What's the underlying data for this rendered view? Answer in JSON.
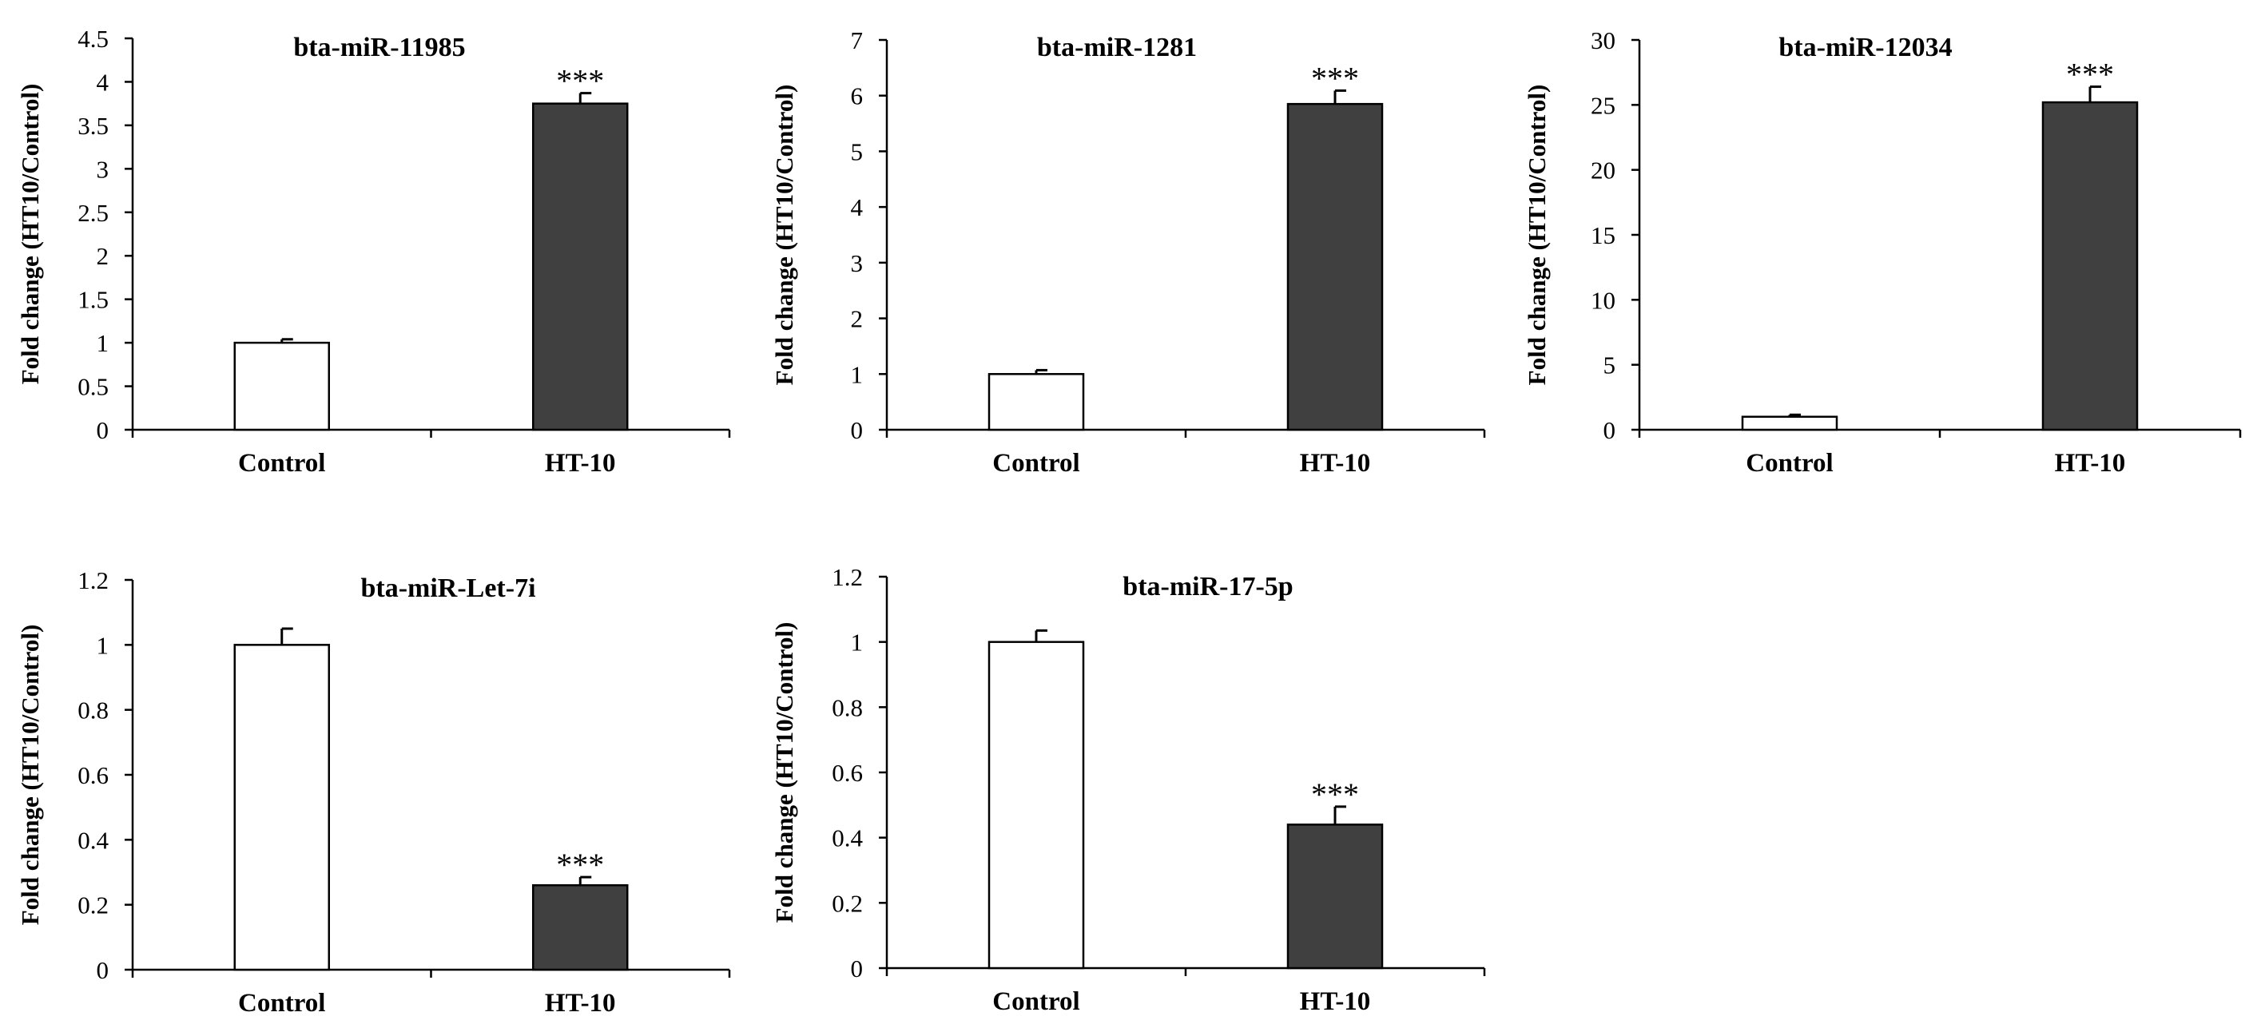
{
  "colors": {
    "control_fill": "#ffffff",
    "treated_fill": "#404040",
    "stroke": "#000000"
  },
  "chart_data": [
    {
      "type": "bar",
      "title": "bta-miR-11985",
      "xlabel": "",
      "ylabel": "Fold change (HT10/Control)",
      "ylim": [
        0,
        4.5
      ],
      "yticks": [
        "0",
        "0.5",
        "1",
        "1.5",
        "2",
        "2.5",
        "3",
        "3.5",
        "4",
        "4.5"
      ],
      "categories": [
        "Control",
        "HT-10"
      ],
      "values": [
        1.0,
        3.75
      ],
      "errors": [
        0.04,
        0.12
      ],
      "annotations": [
        "",
        "***"
      ]
    },
    {
      "type": "bar",
      "title": "bta-miR-1281",
      "xlabel": "",
      "ylabel": "Fold change (HT10/Control)",
      "ylim": [
        0,
        7
      ],
      "yticks": [
        "0",
        "1",
        "2",
        "3",
        "4",
        "5",
        "6",
        "7"
      ],
      "categories": [
        "Control",
        "HT-10"
      ],
      "values": [
        1.0,
        5.85
      ],
      "errors": [
        0.07,
        0.24
      ],
      "annotations": [
        "",
        "***"
      ]
    },
    {
      "type": "bar",
      "title": "bta-miR-12034",
      "xlabel": "",
      "ylabel": "Fold change (HT10/Control)",
      "ylim": [
        0,
        30
      ],
      "yticks": [
        "0",
        "5",
        "10",
        "15",
        "20",
        "25",
        "30"
      ],
      "categories": [
        "Control",
        "HT-10"
      ],
      "values": [
        1.0,
        25.2
      ],
      "errors": [
        0.15,
        1.2
      ],
      "annotations": [
        "",
        "***"
      ]
    },
    {
      "type": "bar",
      "title": "bta-miR-Let-7i",
      "xlabel": "",
      "ylabel": "Fold change (HT10/Control)",
      "ylim": [
        0,
        1.2
      ],
      "yticks": [
        "0",
        "0.2",
        "0.4",
        "0.6",
        "0.8",
        "1",
        "1.2"
      ],
      "categories": [
        "Control",
        "HT-10"
      ],
      "values": [
        1.0,
        0.26
      ],
      "errors": [
        0.05,
        0.025
      ],
      "annotations": [
        "",
        "***"
      ]
    },
    {
      "type": "bar",
      "title": "bta-miR-17-5p",
      "xlabel": "",
      "ylabel": "Fold change (HT10/Control)",
      "ylim": [
        0,
        1.2
      ],
      "yticks": [
        "0",
        "0.2",
        "0.4",
        "0.6",
        "0.8",
        "1",
        "1.2"
      ],
      "categories": [
        "Control",
        "HT-10"
      ],
      "values": [
        1.0,
        0.44
      ],
      "errors": [
        0.035,
        0.055
      ],
      "annotations": [
        "",
        "***"
      ]
    }
  ]
}
